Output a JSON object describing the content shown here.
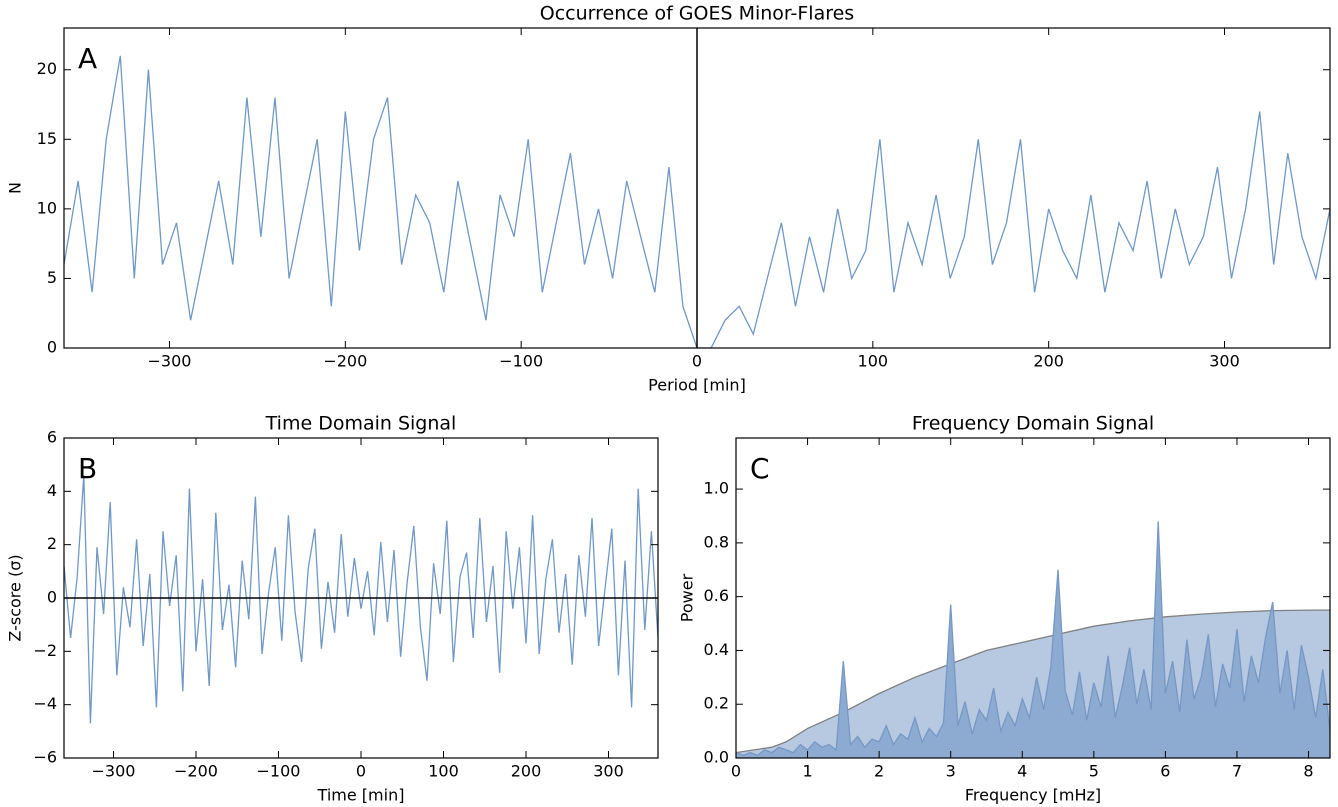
{
  "chart_data": [
    {
      "type": "line",
      "title": "Occurrence of GOES Minor-Flares",
      "xlabel": "Period [min]",
      "ylabel": "N",
      "panel_label": "A",
      "xlim": [
        -360,
        360
      ],
      "ylim": [
        0,
        23
      ],
      "xticks": [
        {
          "value": -300,
          "label": "−300"
        },
        {
          "value": -200,
          "label": "−200"
        },
        {
          "value": -100,
          "label": "−100"
        },
        0,
        100,
        200,
        300
      ],
      "yticks": [
        0,
        5,
        10,
        15,
        20
      ],
      "vline": 0,
      "series": [
        {
          "color": "#6f98c6",
          "x": [
            -360,
            -352,
            -344,
            -336,
            -328,
            -320,
            -312,
            -304,
            -296,
            -288,
            -280,
            -272,
            -264,
            -256,
            -248,
            -240,
            -232,
            -224,
            -216,
            -208,
            -200,
            -192,
            -184,
            -176,
            -168,
            -160,
            -152,
            -144,
            -136,
            -128,
            -120,
            -112,
            -104,
            -96,
            -88,
            -80,
            -72,
            -64,
            -56,
            -48,
            -40,
            -32,
            -24,
            -16,
            -8,
            0,
            8,
            16,
            24,
            32,
            40,
            48,
            56,
            64,
            72,
            80,
            88,
            96,
            104,
            112,
            120,
            128,
            136,
            144,
            152,
            160,
            168,
            176,
            184,
            192,
            200,
            208,
            216,
            224,
            232,
            240,
            248,
            256,
            264,
            272,
            280,
            288,
            296,
            304,
            312,
            320,
            328,
            336,
            344,
            352,
            360
          ],
          "values": [
            6,
            12,
            4,
            15,
            21,
            5,
            20,
            6,
            9,
            2,
            7,
            12,
            6,
            18,
            8,
            18,
            5,
            10,
            15,
            3,
            17,
            7,
            15,
            18,
            6,
            11,
            9,
            4,
            12,
            7,
            2,
            11,
            8,
            15,
            4,
            9,
            14,
            6,
            10,
            5,
            12,
            8,
            4,
            13,
            3,
            0,
            0,
            2,
            3,
            1,
            5,
            9,
            3,
            8,
            4,
            10,
            5,
            7,
            15,
            4,
            9,
            6,
            11,
            5,
            8,
            15,
            6,
            9,
            15,
            4,
            10,
            7,
            5,
            11,
            4,
            9,
            7,
            12,
            5,
            10,
            6,
            8,
            13,
            5,
            10,
            17,
            6,
            14,
            8,
            5,
            10
          ]
        }
      ]
    },
    {
      "type": "line",
      "title": "Time Domain Signal",
      "xlabel": "Time [min]",
      "ylabel": "Z-score (σ)",
      "panel_label": "B",
      "xlim": [
        -360,
        360
      ],
      "ylim": [
        -6,
        6
      ],
      "xticks": [
        {
          "value": -300,
          "label": "−300"
        },
        {
          "value": -200,
          "label": "−200"
        },
        {
          "value": -100,
          "label": "−100"
        },
        0,
        100,
        200,
        300
      ],
      "yticks": [
        {
          "value": -6,
          "label": "−6"
        },
        {
          "value": -4,
          "label": "−4"
        },
        {
          "value": -2,
          "label": "−2"
        },
        0,
        2,
        4,
        6
      ],
      "hline": 0,
      "series": [
        {
          "color": "#6f98c6",
          "x": [
            -360,
            -352,
            -344,
            -336,
            -328,
            -320,
            -312,
            -304,
            -296,
            -288,
            -280,
            -272,
            -264,
            -256,
            -248,
            -240,
            -232,
            -224,
            -216,
            -208,
            -200,
            -192,
            -184,
            -176,
            -168,
            -160,
            -152,
            -144,
            -136,
            -128,
            -120,
            -112,
            -104,
            -96,
            -88,
            -80,
            -72,
            -64,
            -56,
            -48,
            -40,
            -32,
            -24,
            -16,
            -8,
            0,
            8,
            16,
            24,
            32,
            40,
            48,
            56,
            64,
            72,
            80,
            88,
            96,
            104,
            112,
            120,
            128,
            136,
            144,
            152,
            160,
            168,
            176,
            184,
            192,
            200,
            208,
            216,
            224,
            232,
            240,
            248,
            256,
            264,
            272,
            280,
            288,
            296,
            304,
            312,
            320,
            328,
            336,
            344,
            352,
            360
          ],
          "values": [
            1.2,
            -1.5,
            0.8,
            4.6,
            -4.7,
            1.9,
            -0.6,
            3.6,
            -2.9,
            0.4,
            -1.1,
            2.2,
            -1.8,
            0.9,
            -4.1,
            2.5,
            -0.3,
            1.6,
            -3.5,
            4.1,
            -2.0,
            0.7,
            -3.3,
            3.2,
            -1.2,
            0.5,
            -2.6,
            1.4,
            -0.8,
            3.8,
            -2.1,
            0.2,
            1.9,
            -1.6,
            3.1,
            -0.5,
            -2.4,
            1.1,
            2.6,
            -1.9,
            0.6,
            -1.3,
            2.4,
            -0.7,
            1.5,
            -0.4,
            1.0,
            -1.4,
            2.1,
            -0.9,
            1.8,
            -2.2,
            0.6,
            2.7,
            -1.1,
            -3.1,
            1.3,
            -0.6,
            2.9,
            -2.4,
            0.8,
            1.7,
            -1.5,
            3.0,
            -0.9,
            1.2,
            -2.8,
            2.5,
            -0.4,
            1.9,
            -1.7,
            3.1,
            -2.1,
            0.7,
            2.2,
            -1.3,
            0.9,
            -2.5,
            1.6,
            -0.7,
            3.0,
            -1.8,
            0.4,
            2.6,
            -2.9,
            1.4,
            -4.1,
            4.1,
            -1.2,
            2.5,
            -1.5
          ]
        }
      ]
    },
    {
      "type": "area",
      "title": "Frequency Domain Signal",
      "xlabel": "Frequency [mHz]",
      "ylabel": "Power",
      "panel_label": "C",
      "xlim": [
        0,
        8.3
      ],
      "ylim": [
        0,
        1.19
      ],
      "xticks": [
        0,
        1,
        2,
        3,
        4,
        5,
        6,
        7,
        8
      ],
      "yticks": [
        {
          "value": 0,
          "label": "0.0"
        },
        0.2,
        0.4,
        0.6,
        0.8,
        {
          "value": 1,
          "label": "1.0"
        }
      ],
      "series": [
        {
          "color": "#808080",
          "fill": "#b7c8e1",
          "x": [
            0,
            0.5,
            0.7,
            1,
            1.5,
            2,
            2.5,
            3,
            3.5,
            4,
            4.5,
            5,
            5.5,
            6,
            6.5,
            7,
            7.5,
            8,
            8.3
          ],
          "values": [
            0.02,
            0.04,
            0.06,
            0.11,
            0.17,
            0.24,
            0.3,
            0.35,
            0.4,
            0.43,
            0.46,
            0.49,
            0.51,
            0.525,
            0.535,
            0.543,
            0.548,
            0.55,
            0.55
          ]
        },
        {
          "color": "#7598c4",
          "fill": "#8daad1",
          "x": [
            0,
            0.1,
            0.2,
            0.3,
            0.4,
            0.5,
            0.6,
            0.7,
            0.8,
            0.9,
            1,
            1.1,
            1.2,
            1.3,
            1.4,
            1.5,
            1.6,
            1.7,
            1.8,
            1.9,
            2,
            2.1,
            2.2,
            2.3,
            2.4,
            2.5,
            2.6,
            2.7,
            2.8,
            2.9,
            3,
            3.1,
            3.2,
            3.3,
            3.4,
            3.5,
            3.6,
            3.7,
            3.8,
            3.9,
            4,
            4.1,
            4.2,
            4.3,
            4.4,
            4.5,
            4.6,
            4.7,
            4.8,
            4.9,
            5,
            5.1,
            5.2,
            5.3,
            5.4,
            5.5,
            5.6,
            5.7,
            5.8,
            5.9,
            6,
            6.1,
            6.2,
            6.3,
            6.4,
            6.5,
            6.6,
            6.7,
            6.8,
            6.9,
            7,
            7.1,
            7.2,
            7.3,
            7.4,
            7.5,
            7.6,
            7.7,
            7.8,
            7.9,
            8,
            8.1,
            8.2,
            8.3
          ],
          "values": [
            0.02,
            0.01,
            0.02,
            0.01,
            0.03,
            0.02,
            0.04,
            0.03,
            0.02,
            0.05,
            0.03,
            0.06,
            0.04,
            0.05,
            0.03,
            0.36,
            0.05,
            0.08,
            0.04,
            0.07,
            0.06,
            0.12,
            0.05,
            0.09,
            0.07,
            0.15,
            0.06,
            0.11,
            0.08,
            0.13,
            0.57,
            0.12,
            0.21,
            0.09,
            0.18,
            0.14,
            0.26,
            0.1,
            0.17,
            0.12,
            0.22,
            0.15,
            0.3,
            0.18,
            0.34,
            0.7,
            0.25,
            0.16,
            0.32,
            0.14,
            0.28,
            0.19,
            0.38,
            0.15,
            0.27,
            0.41,
            0.2,
            0.33,
            0.18,
            0.88,
            0.24,
            0.36,
            0.17,
            0.44,
            0.22,
            0.3,
            0.46,
            0.19,
            0.35,
            0.26,
            0.48,
            0.21,
            0.38,
            0.28,
            0.45,
            0.58,
            0.24,
            0.4,
            0.18,
            0.42,
            0.3,
            0.15,
            0.33,
            0.1
          ]
        }
      ]
    }
  ]
}
